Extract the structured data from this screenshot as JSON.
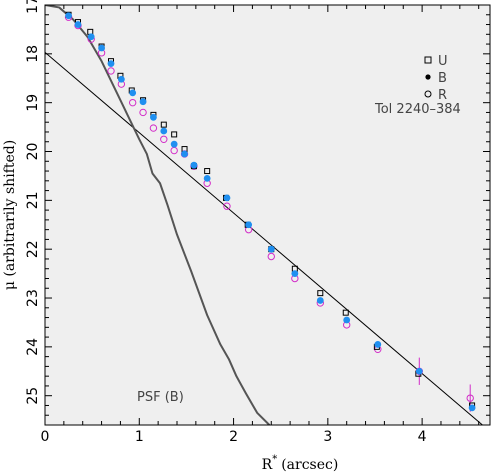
{
  "chart_data": {
    "type": "scatter",
    "xlabel": "R* (arcsec)",
    "xlabel_main": "R",
    "xlabel_sup": "*",
    "xlabel_unit": "(arcsec)",
    "ylabel": "μ (arbitrarily shifted)",
    "xlim": [
      0,
      4.72
    ],
    "ylim": [
      25.6,
      17.0
    ],
    "y_inverted": true,
    "xticks": [
      "0",
      "1",
      "2",
      "3",
      "4"
    ],
    "yticks": [
      "17",
      "18",
      "19",
      "20",
      "21",
      "22",
      "23",
      "24",
      "25"
    ],
    "grid": false,
    "background": "#efefef",
    "object_label": "Tol 2240–384",
    "legend": {
      "placement": "top-right",
      "entries": [
        {
          "marker": "open-square",
          "label": "U"
        },
        {
          "marker": "filled-circle",
          "label": "B"
        },
        {
          "marker": "open-circle",
          "label": "R"
        }
      ]
    },
    "series": [
      {
        "name": "U",
        "marker": "open-square",
        "color": "#000000",
        "x": [
          0.25,
          0.35,
          0.48,
          0.6,
          0.7,
          0.8,
          0.92,
          1.04,
          1.15,
          1.26,
          1.37,
          1.48,
          1.58,
          1.72,
          1.92,
          2.15,
          2.4,
          2.65,
          2.92,
          3.19,
          3.52,
          3.96,
          4.53
        ],
        "y": [
          17.2,
          17.35,
          17.55,
          17.85,
          18.15,
          18.45,
          18.75,
          18.95,
          19.25,
          19.45,
          19.65,
          19.95,
          20.3,
          20.4,
          20.95,
          21.5,
          22.0,
          22.4,
          22.9,
          23.3,
          24.0,
          24.55,
          25.2
        ]
      },
      {
        "name": "B",
        "marker": "filled-circle",
        "color": "#1f8ff0",
        "x": [
          0.25,
          0.35,
          0.49,
          0.6,
          0.7,
          0.81,
          0.93,
          1.04,
          1.15,
          1.26,
          1.37,
          1.48,
          1.58,
          1.72,
          1.93,
          2.16,
          2.4,
          2.65,
          2.92,
          3.2,
          3.53,
          3.97,
          4.53
        ],
        "y": [
          17.22,
          17.4,
          17.65,
          17.88,
          18.2,
          18.52,
          18.8,
          18.98,
          19.3,
          19.58,
          19.85,
          20.05,
          20.28,
          20.55,
          20.95,
          21.5,
          22.0,
          22.5,
          23.05,
          23.45,
          23.95,
          24.5,
          25.25
        ]
      },
      {
        "name": "R",
        "marker": "open-circle",
        "color": "#d22cc8",
        "x": [
          0.25,
          0.35,
          0.49,
          0.6,
          0.7,
          0.81,
          0.93,
          1.04,
          1.15,
          1.26,
          1.37,
          1.48,
          1.58,
          1.72,
          1.93,
          2.16,
          2.4,
          2.65,
          2.92,
          3.2,
          3.53,
          3.97,
          4.51
        ],
        "y": [
          17.25,
          17.42,
          17.7,
          17.98,
          18.35,
          18.62,
          19.0,
          19.2,
          19.52,
          19.75,
          19.98,
          20.05,
          20.3,
          20.65,
          21.12,
          21.6,
          22.15,
          22.6,
          23.1,
          23.55,
          24.05,
          24.5,
          25.05
        ],
        "errorbars": [
          {
            "x": 3.97,
            "y": 24.5,
            "err": 0.28
          },
          {
            "x": 4.51,
            "y": 25.05,
            "err": 0.28
          }
        ]
      }
    ],
    "lines": [
      {
        "name": "exponential fit",
        "color": "#000000",
        "points": [
          [
            0.0,
            17.97
          ],
          [
            4.64,
            25.6
          ]
        ]
      },
      {
        "name": "PSF (B)",
        "label": "PSF (B)",
        "color": "#555555",
        "points": [
          [
            0.0,
            17.0
          ],
          [
            0.15,
            17.05
          ],
          [
            0.3,
            17.3
          ],
          [
            0.45,
            17.65
          ],
          [
            0.6,
            18.15
          ],
          [
            0.7,
            18.55
          ],
          [
            0.8,
            18.95
          ],
          [
            0.9,
            19.35
          ],
          [
            1.0,
            19.75
          ],
          [
            1.08,
            20.05
          ],
          [
            1.14,
            20.45
          ],
          [
            1.22,
            20.65
          ],
          [
            1.3,
            21.1
          ],
          [
            1.4,
            21.7
          ],
          [
            1.55,
            22.45
          ],
          [
            1.72,
            23.35
          ],
          [
            1.86,
            23.95
          ],
          [
            1.95,
            24.25
          ],
          [
            2.03,
            24.6
          ],
          [
            2.13,
            24.95
          ],
          [
            2.25,
            25.35
          ],
          [
            2.38,
            25.6
          ]
        ]
      }
    ]
  }
}
